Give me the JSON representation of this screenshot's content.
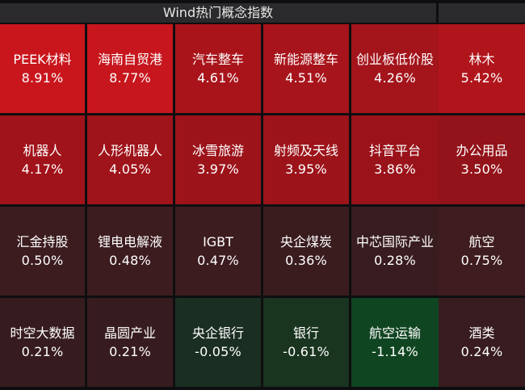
{
  "header": {
    "title": "Wind热门概念指数",
    "side_title": ""
  },
  "tiles": [
    {
      "name": "PEEK材料",
      "change": "8.91%",
      "color": "#c9161d"
    },
    {
      "name": "海南自贸港",
      "change": "8.77%",
      "color": "#c7161d"
    },
    {
      "name": "汽车整车",
      "change": "4.61%",
      "color": "#a9141b"
    },
    {
      "name": "新能源整车",
      "change": "4.51%",
      "color": "#a8141b"
    },
    {
      "name": "创业板低价股",
      "change": "4.26%",
      "color": "#a3141b"
    },
    {
      "name": "机器人",
      "change": "4.17%",
      "color": "#a1131a"
    },
    {
      "name": "人形机器人",
      "change": "4.05%",
      "color": "#9f131a"
    },
    {
      "name": "冰雪旅游",
      "change": "3.97%",
      "color": "#9c131a"
    },
    {
      "name": "射频及天线",
      "change": "3.95%",
      "color": "#9c131a"
    },
    {
      "name": "抖音平台",
      "change": "3.86%",
      "color": "#9a131a"
    },
    {
      "name": "汇金持股",
      "change": "0.50%",
      "color": "#3c1c1f"
    },
    {
      "name": "锂电电解液",
      "change": "0.48%",
      "color": "#3c1c1f"
    },
    {
      "name": "IGBT",
      "change": "0.47%",
      "color": "#3c1c1f"
    },
    {
      "name": "央企煤炭",
      "change": "0.36%",
      "color": "#3a1c1f"
    },
    {
      "name": "中芯国际产业",
      "change": "0.28%",
      "color": "#381c1f"
    },
    {
      "name": "时空大数据",
      "change": "0.21%",
      "color": "#371c1f"
    },
    {
      "name": "晶圆产业",
      "change": "0.21%",
      "color": "#371c1f"
    },
    {
      "name": "央企银行",
      "change": "-0.05%",
      "color": "#1b2e22"
    },
    {
      "name": "银行",
      "change": "-0.61%",
      "color": "#19341f"
    },
    {
      "name": "航空运输",
      "change": "-1.14%",
      "color": "#0f4521"
    }
  ],
  "side_tiles": [
    {
      "name": "林木",
      "change": "5.42%",
      "color": "#b1151c"
    },
    {
      "name": "办公用品",
      "change": "3.50%",
      "color": "#93131a"
    },
    {
      "name": "航空",
      "change": "0.75%",
      "color": "#3f1c1f"
    },
    {
      "name": "酒类",
      "change": "0.24%",
      "color": "#381c1f"
    }
  ]
}
